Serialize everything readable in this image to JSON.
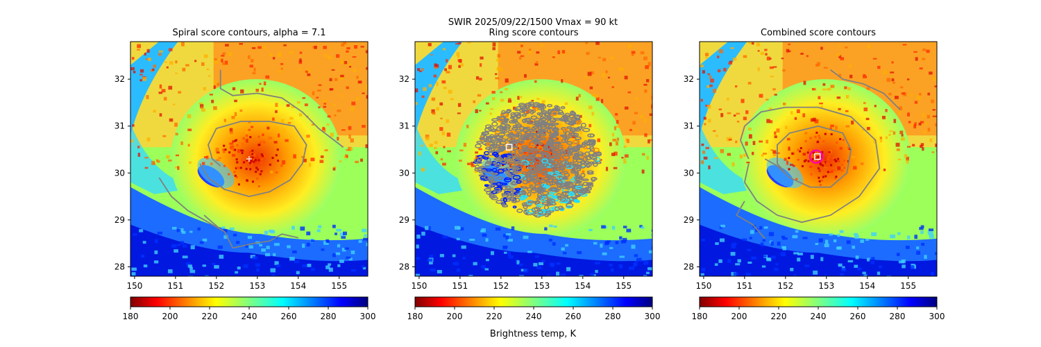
{
  "figure": {
    "suptitle": "SWIR  2025/09/22/1500    Vmax = 90 kt",
    "colorbar_label": "Brightness temp, K"
  },
  "chart_data": {
    "type": "heatmap",
    "colormap": "jet_r",
    "value_range": [
      180,
      300
    ],
    "center": {
      "lon": 152.8,
      "lat": 30.3
    },
    "panels": [
      {
        "title": "Spiral score contours, alpha =  7.1",
        "xlim": [
          149.9,
          155.7
        ],
        "ylim": [
          27.8,
          32.8
        ],
        "xticks": [
          150,
          151,
          152,
          153,
          154,
          155
        ],
        "yticks": [
          28,
          29,
          30,
          31,
          32
        ],
        "colorbar_ticks": [
          180,
          200,
          220,
          240,
          260,
          280,
          300
        ],
        "contour_color": "#808080",
        "contours": [
          [
            [
              150.6,
              29.9
            ],
            [
              150.9,
              29.5
            ],
            [
              151.3,
              29.2
            ],
            [
              151.8,
              28.95
            ],
            [
              152.2,
              28.75
            ],
            [
              152.4,
              28.4
            ]
          ],
          [
            [
              152.4,
              28.4
            ],
            [
              152.9,
              28.5
            ],
            [
              153.3,
              28.55
            ],
            [
              153.6,
              28.7
            ],
            [
              154.0,
              28.62
            ]
          ],
          [
            [
              151.7,
              29.1
            ],
            [
              151.9,
              28.95
            ],
            [
              152.1,
              28.8
            ]
          ],
          [
            [
              151.6,
              30.2
            ],
            [
              151.8,
              29.9
            ],
            [
              152.2,
              29.65
            ],
            [
              152.8,
              29.5
            ],
            [
              153.3,
              29.6
            ],
            [
              153.8,
              29.85
            ],
            [
              154.1,
              30.2
            ],
            [
              154.2,
              30.6
            ],
            [
              153.9,
              31.0
            ],
            [
              153.3,
              31.1
            ],
            [
              152.6,
              31.1
            ],
            [
              152.0,
              30.95
            ],
            [
              151.8,
              30.6
            ],
            [
              151.9,
              30.3
            ],
            [
              152.1,
              30.15
            ]
          ],
          [
            [
              152.1,
              32.2
            ],
            [
              152.1,
              31.8
            ],
            [
              152.4,
              31.65
            ],
            [
              153.0,
              31.7
            ],
            [
              153.6,
              31.6
            ],
            [
              154.1,
              31.3
            ],
            [
              154.5,
              30.95
            ],
            [
              155.1,
              30.55
            ]
          ]
        ],
        "marker": {
          "type": "plus",
          "lon": 152.8,
          "lat": 30.3,
          "color": "#ffffff"
        }
      },
      {
        "title": "Ring score contours",
        "xlim": [
          149.9,
          155.7
        ],
        "ylim": [
          27.8,
          32.8
        ],
        "xticks": [
          150,
          151,
          152,
          153,
          154,
          155
        ],
        "yticks": [
          28,
          29,
          30,
          31,
          32
        ],
        "colorbar_ticks": [
          180,
          200,
          220,
          240,
          260,
          280,
          300
        ],
        "contour_color": "#808080",
        "ring_region": {
          "lon": 152.9,
          "lat": 30.3,
          "rlon": 1.5,
          "rlat": 1.2
        },
        "marker": {
          "type": "square",
          "lon": 152.2,
          "lat": 30.55,
          "color": "#ffffff"
        }
      },
      {
        "title": "Combined score contours",
        "xlim": [
          149.9,
          155.7
        ],
        "ylim": [
          27.8,
          32.8
        ],
        "xticks": [
          150,
          151,
          152,
          153,
          154,
          155
        ],
        "yticks": [
          28,
          29,
          30,
          31,
          32
        ],
        "colorbar_ticks": [
          180,
          200,
          220,
          240,
          260,
          280,
          300
        ],
        "contour_color": "#808080",
        "contours": [
          [
            [
              151.0,
              29.4
            ],
            [
              150.8,
              29.1
            ],
            [
              151.2,
              28.9
            ],
            [
              151.5,
              28.6
            ]
          ],
          [
            [
              151.5,
              30.3
            ],
            [
              151.8,
              30.15
            ],
            [
              152.1,
              29.9
            ],
            [
              152.6,
              29.7
            ],
            [
              153.1,
              29.7
            ],
            [
              153.5,
              30.0
            ],
            [
              153.6,
              30.5
            ],
            [
              153.4,
              30.85
            ],
            [
              152.8,
              31.0
            ],
            [
              152.1,
              30.85
            ],
            [
              151.8,
              30.6
            ],
            [
              151.8,
              30.2
            ],
            [
              152.0,
              30.0
            ]
          ],
          [
            [
              151.1,
              30.3
            ],
            [
              150.9,
              30.7
            ],
            [
              151.0,
              31.0
            ],
            [
              151.4,
              31.3
            ],
            [
              152.0,
              31.4
            ],
            [
              152.8,
              31.4
            ],
            [
              153.6,
              31.2
            ],
            [
              154.2,
              30.7
            ],
            [
              154.3,
              30.1
            ],
            [
              153.8,
              29.5
            ],
            [
              153.1,
              29.1
            ],
            [
              152.4,
              28.95
            ],
            [
              151.8,
              29.1
            ],
            [
              151.3,
              29.4
            ],
            [
              151.0,
              29.8
            ],
            [
              151.1,
              30.2
            ]
          ],
          [
            [
              153.1,
              32.2
            ],
            [
              153.4,
              32.0
            ],
            [
              153.9,
              31.9
            ],
            [
              154.4,
              31.7
            ],
            [
              154.8,
              31.35
            ]
          ]
        ],
        "circle": {
          "lon": 152.75,
          "lat": 30.35,
          "color": "#ff00aa"
        },
        "marker": {
          "type": "square",
          "lon": 152.78,
          "lat": 30.35,
          "color": "#ffffff"
        }
      }
    ]
  }
}
